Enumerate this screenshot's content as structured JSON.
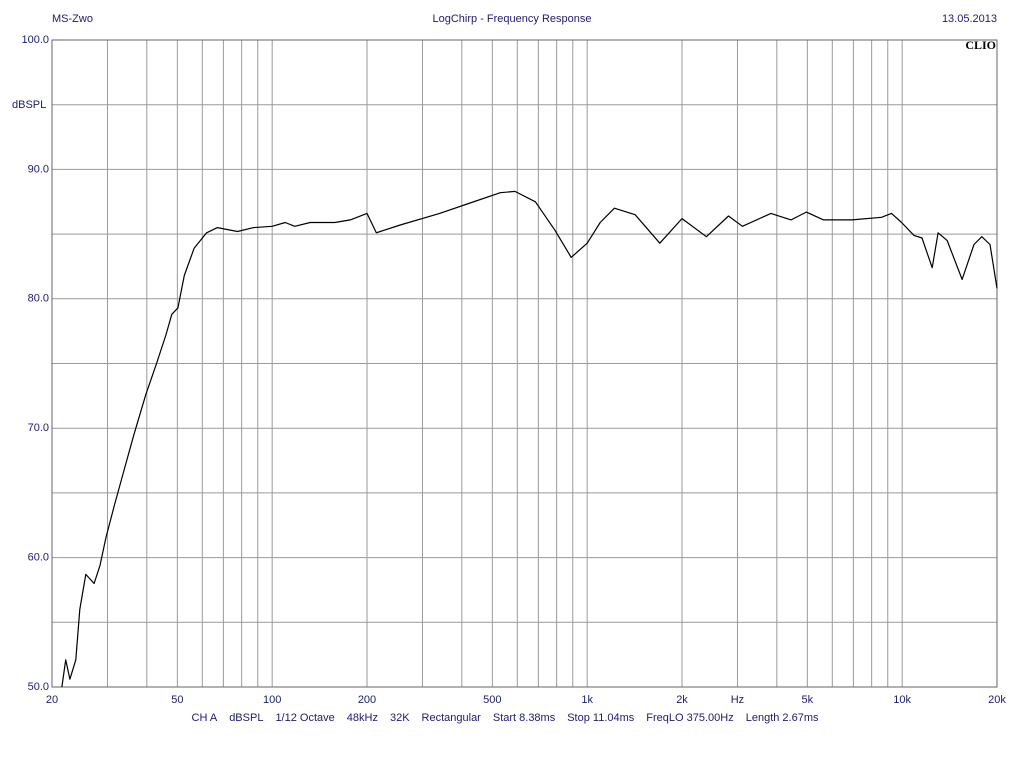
{
  "chart_data": {
    "type": "line",
    "header_left": "MS-Zwo",
    "title": "LogChirp - Frequency Response",
    "header_right": "13.05.2013",
    "brand": "CLIO",
    "ylabel": "dBSPL",
    "xscale": "log",
    "xlim": [
      20,
      20000
    ],
    "ylim": [
      50,
      100
    ],
    "xticks": [
      20,
      50,
      100,
      200,
      500,
      {
        "value": 1000,
        "label": "1k"
      },
      {
        "value": 2000,
        "label": "2k"
      },
      {
        "value": 3000,
        "label": "Hz"
      },
      {
        "value": 5000,
        "label": "5k"
      },
      {
        "value": 10000,
        "label": "10k"
      },
      {
        "value": 20000,
        "label": "20k"
      }
    ],
    "x_minor_ticks": [
      30,
      40,
      60,
      70,
      80,
      90,
      300,
      400,
      600,
      700,
      800,
      900,
      4000,
      6000,
      7000,
      8000,
      9000
    ],
    "yticks": [
      {
        "value": 50,
        "label": "50.0"
      },
      {
        "value": 60,
        "label": "60.0"
      },
      {
        "value": 70,
        "label": "70.0"
      },
      {
        "value": 80,
        "label": "80.0"
      },
      {
        "value": 90,
        "label": "90.0"
      },
      {
        "value": 100,
        "label": "100.0"
      }
    ],
    "y_minor_ticks": [
      55,
      65,
      75,
      85,
      95
    ],
    "grid": true,
    "series": [
      {
        "name": "CH A",
        "color": "#000000",
        "x": [
          21.5,
          22.1,
          22.8,
          23.8,
          24.5,
          25.6,
          27.2,
          28.4,
          29.7,
          31.6,
          33.9,
          36.4,
          39.7,
          42.8,
          46.0,
          48.0,
          50.2,
          52.6,
          56.5,
          61.9,
          67.0,
          77.6,
          87.3,
          100,
          110,
          118,
          132,
          158,
          177,
          200,
          214,
          255,
          340,
          425,
          530,
          590,
          685,
          790,
          890,
          1000,
          1100,
          1220,
          1420,
          1700,
          2000,
          2390,
          2810,
          3110,
          3830,
          4440,
          4960,
          5630,
          6930,
          8600,
          9250,
          9960,
          10900,
          11560,
          12450,
          13000,
          13900,
          15500,
          16900,
          17900,
          19000,
          20000
        ],
        "values": [
          50.0,
          52.1,
          50.6,
          52.1,
          56.0,
          58.7,
          58.0,
          59.4,
          61.6,
          64.1,
          66.8,
          69.5,
          72.6,
          74.9,
          77.2,
          78.8,
          79.3,
          81.8,
          83.9,
          85.1,
          85.5,
          85.2,
          85.5,
          85.6,
          85.9,
          85.6,
          85.9,
          85.9,
          86.1,
          86.6,
          85.1,
          85.7,
          86.6,
          87.4,
          88.2,
          88.3,
          87.5,
          85.3,
          83.2,
          84.3,
          85.9,
          87.0,
          86.5,
          84.3,
          86.2,
          84.8,
          86.4,
          85.6,
          86.6,
          86.1,
          86.7,
          86.1,
          86.1,
          86.3,
          86.6,
          85.9,
          84.9,
          84.7,
          82.4,
          85.1,
          84.5,
          81.5,
          84.2,
          84.8,
          84.2,
          80.8
        ]
      }
    ],
    "footer": [
      "CH A",
      "dBSPL",
      "1/12 Octave",
      "48kHz",
      "32K",
      "Rectangular",
      "Start 8.38ms",
      "Stop 11.04ms",
      "FreqLO 375.00Hz",
      "Length 2.67ms"
    ]
  }
}
